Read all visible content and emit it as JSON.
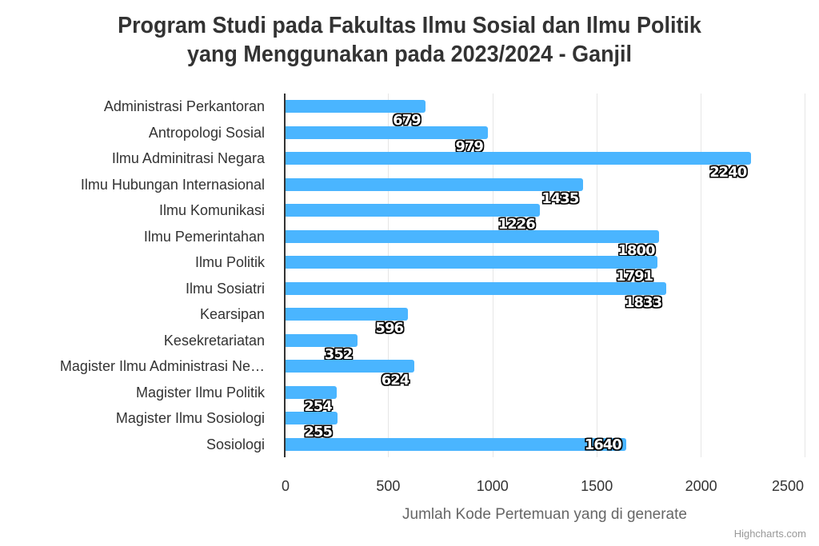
{
  "chart_data": {
    "type": "bar",
    "orientation": "horizontal",
    "title": "Program Studi pada Fakultas Ilmu Sosial dan Ilmu Politik yang Menggunakan pada 2023/2024 - Ganjil",
    "title_lines": [
      "Program Studi pada Fakultas Ilmu Sosial dan Ilmu Politik",
      "yang Menggunakan pada 2023/2024 - Ganjil"
    ],
    "xlabel": "Jumlah Kode Pertemuan yang di generate",
    "ylabel": "",
    "categories": [
      "Administrasi Perkantoran",
      "Antropologi Sosial",
      "Ilmu Adminitrasi Negara",
      "Ilmu Hubungan Internasional",
      "Ilmu Komunikasi",
      "Ilmu Pemerintahan",
      "Ilmu Politik",
      "Ilmu Sosiatri",
      "Kearsipan",
      "Kesekretariatan",
      "Magister Ilmu Administrasi Ne…",
      "Magister Ilmu Politik",
      "Magister Ilmu Sosiologi",
      "Sosiologi"
    ],
    "values": [
      679,
      979,
      2240,
      1435,
      1226,
      1800,
      1791,
      1833,
      596,
      352,
      624,
      254,
      255,
      1640
    ],
    "value_labels": [
      "679",
      "979",
      "2240",
      "1435",
      "1226",
      "1800",
      "1791",
      "1833",
      "596",
      "352",
      "624",
      "254",
      "255",
      "1640"
    ],
    "xlim": [
      0,
      2500
    ],
    "x_ticks": [
      "0",
      "500",
      "1000",
      "1500",
      "2000",
      "2500"
    ],
    "grid": true,
    "legend": "none",
    "bar_color": "#4ab5ff",
    "credit": "Highcharts.com"
  }
}
